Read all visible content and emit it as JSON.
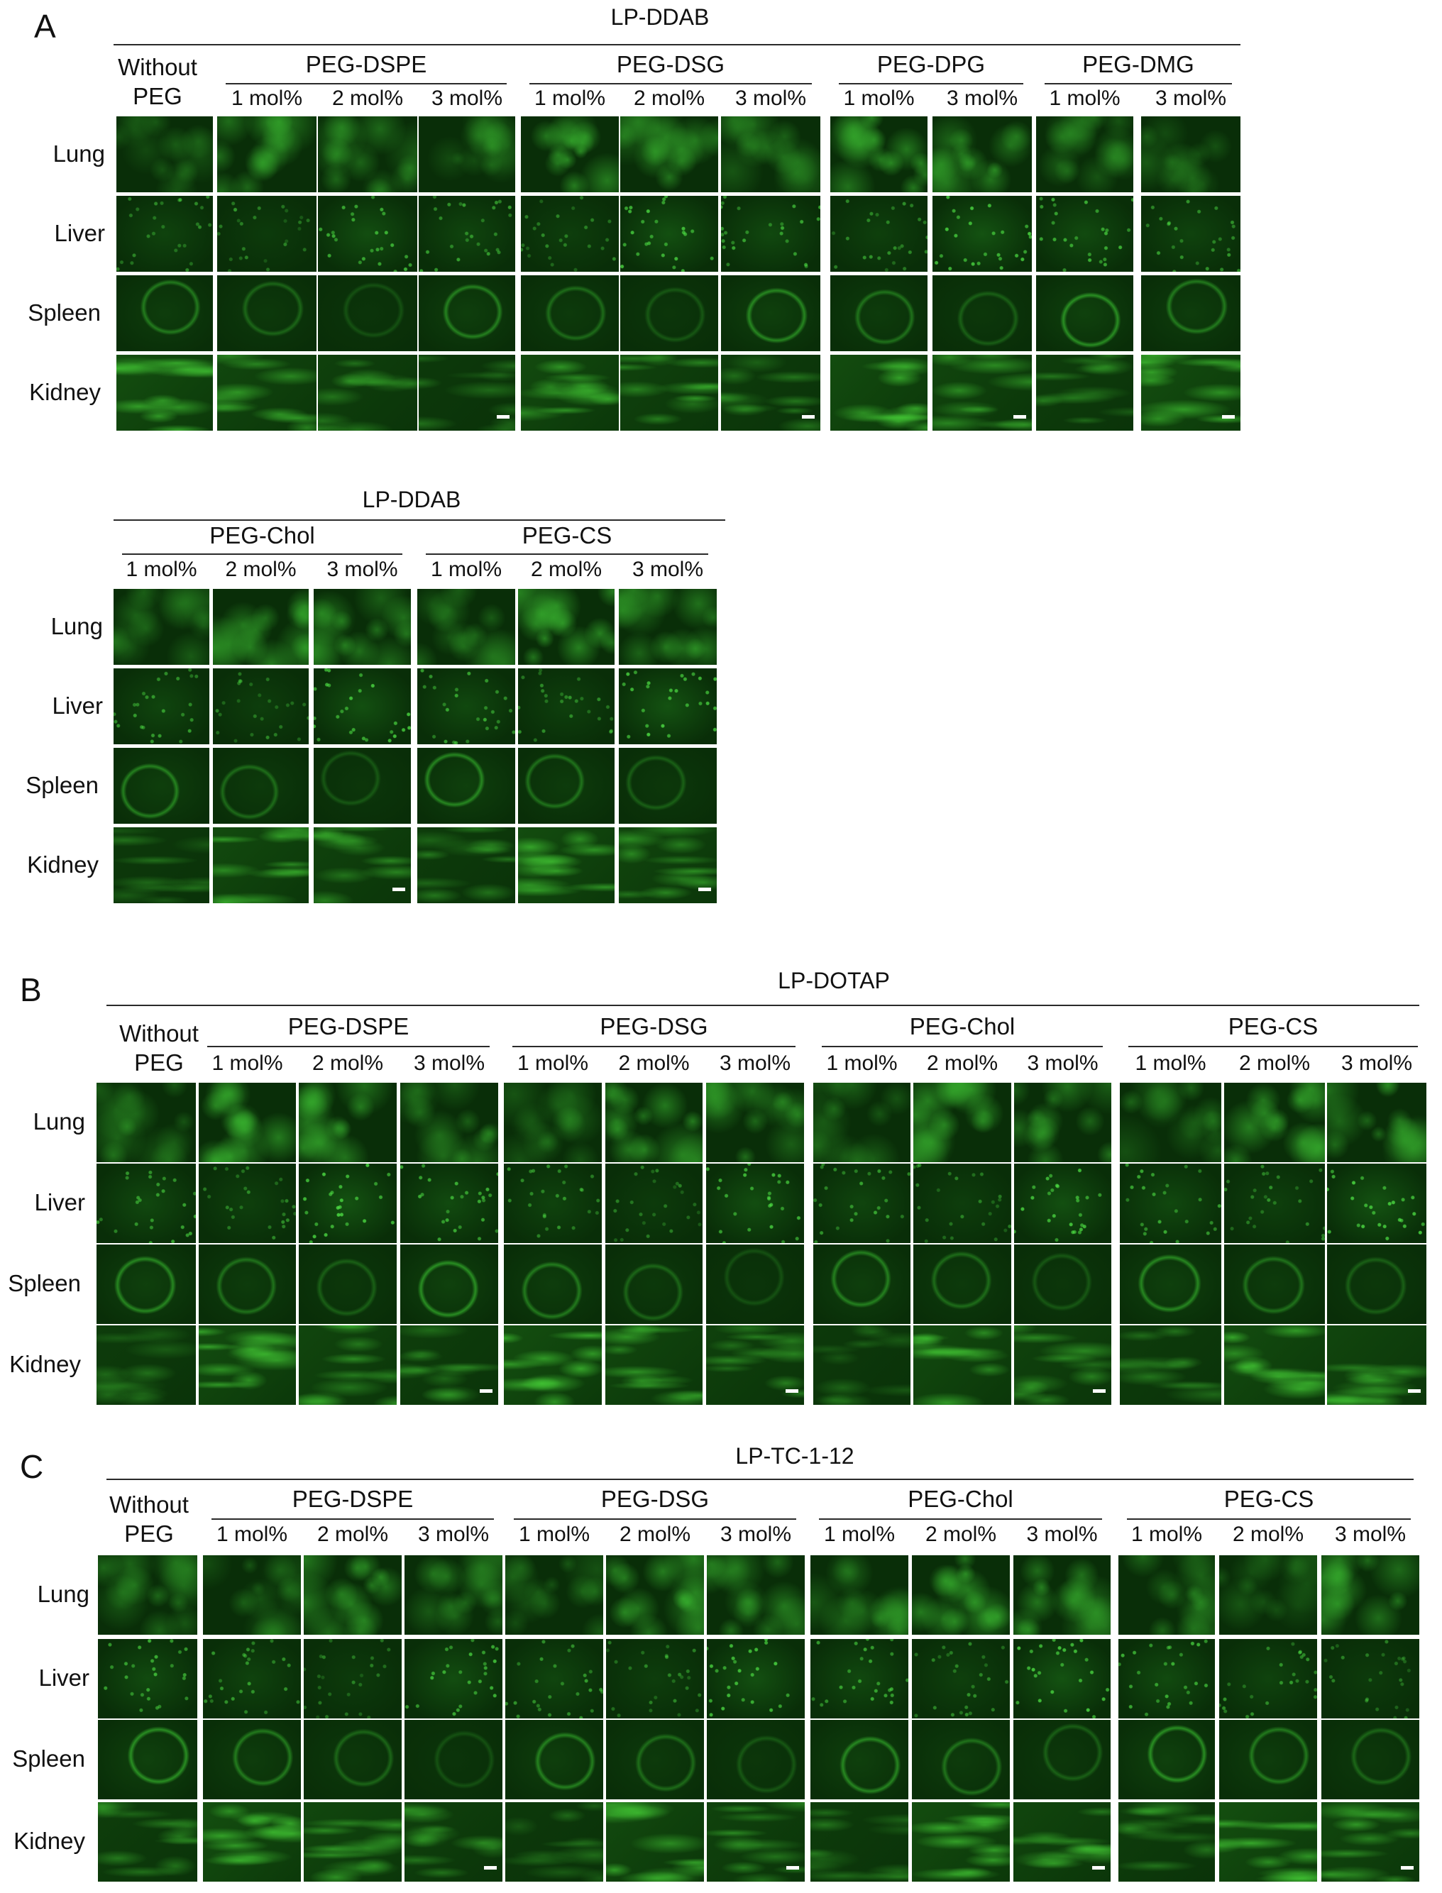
{
  "figure": {
    "palette": {
      "tile": "#092e08",
      "signal": "#39d12e",
      "background": "#ffffff",
      "scale_bar": "#ffffff"
    },
    "panels": [
      {
        "id": "A1",
        "letter": "A",
        "title": "LP-DDAB",
        "without_peg": [
          "Without",
          "PEG"
        ],
        "groups": [
          {
            "name": "PEG-DSPE",
            "concentrations": [
              "1 mol%",
              "2 mol%",
              "3 mol%"
            ]
          },
          {
            "name": "PEG-DSG",
            "concentrations": [
              "1 mol%",
              "2 mol%",
              "3 mol%"
            ]
          },
          {
            "name": "PEG-DPG",
            "concentrations": [
              "1 mol%",
              "3 mol%"
            ]
          },
          {
            "name": "PEG-DMG",
            "concentrations": [
              "1 mol%",
              "3 mol%"
            ]
          }
        ],
        "rows": [
          "Lung",
          "Liver",
          "Spleen",
          "Kidney"
        ]
      },
      {
        "id": "A2",
        "letter": "",
        "title": "LP-DDAB",
        "without_peg": null,
        "groups": [
          {
            "name": "PEG-Chol",
            "concentrations": [
              "1 mol%",
              "2 mol%",
              "3 mol%"
            ]
          },
          {
            "name": "PEG-CS",
            "concentrations": [
              "1 mol%",
              "2 mol%",
              "3 mol%"
            ]
          }
        ],
        "rows": [
          "Lung",
          "Liver",
          "Spleen",
          "Kidney"
        ]
      },
      {
        "id": "B",
        "letter": "B",
        "title": "LP-DOTAP",
        "without_peg": [
          "Without",
          "PEG"
        ],
        "groups": [
          {
            "name": "PEG-DSPE",
            "concentrations": [
              "1 mol%",
              "2 mol%",
              "3 mol%"
            ]
          },
          {
            "name": "PEG-DSG",
            "concentrations": [
              "1 mol%",
              "2 mol%",
              "3 mol%"
            ]
          },
          {
            "name": "PEG-Chol",
            "concentrations": [
              "1 mol%",
              "2 mol%",
              "3 mol%"
            ]
          },
          {
            "name": "PEG-CS",
            "concentrations": [
              "1 mol%",
              "2 mol%",
              "3 mol%"
            ]
          }
        ],
        "rows": [
          "Lung",
          "Liver",
          "Spleen",
          "Kidney"
        ]
      },
      {
        "id": "C",
        "letter": "C",
        "title": "LP-TC-1-12",
        "without_peg": [
          "Without",
          "PEG"
        ],
        "groups": [
          {
            "name": "PEG-DSPE",
            "concentrations": [
              "1 mol%",
              "2 mol%",
              "3 mol%"
            ]
          },
          {
            "name": "PEG-DSG",
            "concentrations": [
              "1 mol%",
              "2 mol%",
              "3 mol%"
            ]
          },
          {
            "name": "PEG-Chol",
            "concentrations": [
              "1 mol%",
              "2 mol%",
              "3 mol%"
            ]
          },
          {
            "name": "PEG-CS",
            "concentrations": [
              "1 mol%",
              "2 mol%",
              "3 mol%"
            ]
          }
        ],
        "rows": [
          "Lung",
          "Liver",
          "Spleen",
          "Kidney"
        ]
      }
    ]
  }
}
